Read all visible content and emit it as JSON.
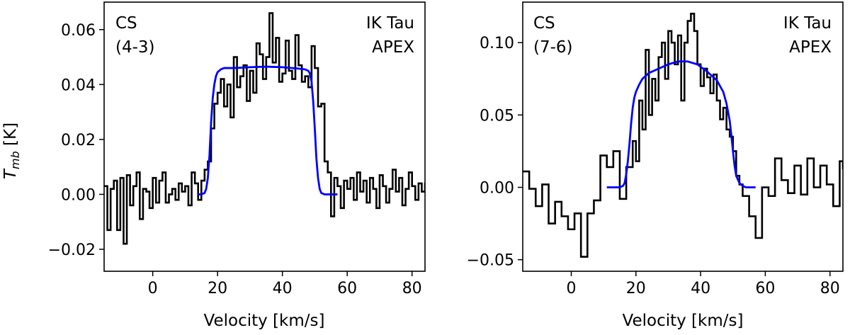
{
  "chart_data": [
    {
      "type": "line",
      "annotation_left": [
        "CS",
        "(4-3)"
      ],
      "annotation_right": [
        "IK Tau",
        "APEX"
      ],
      "xlabel": "Velocity [km/s]",
      "ylabel_main": "T",
      "ylabel_sub": "mb",
      "ylabel_unit": " [K]",
      "xlim": [
        -15,
        84
      ],
      "ylim": [
        -0.028,
        0.07
      ],
      "xticks": [
        0,
        20,
        40,
        60,
        80
      ],
      "xtick_labels": [
        "0",
        "20",
        "40",
        "60",
        "80"
      ],
      "yticks": [
        -0.02,
        0.0,
        0.02,
        0.04,
        0.06
      ],
      "ytick_labels": [
        "−0.02",
        "0.00",
        "0.02",
        "0.04",
        "0.06"
      ],
      "series": [
        {
          "name": "observed spectrum",
          "style": "step",
          "color": "#000000",
          "x": [
            -15.0,
            -14.0,
            -13.0,
            -12.0,
            -11.0,
            -10.0,
            -9.0,
            -8.0,
            -7.0,
            -6.0,
            -5.0,
            -4.0,
            -3.0,
            -2.0,
            -1.0,
            0.0,
            1.0,
            2.0,
            3.0,
            4.0,
            5.0,
            6.0,
            7.0,
            8.0,
            9.0,
            10.0,
            11.0,
            12.0,
            13.0,
            14.0,
            15.0,
            16.0,
            17.0,
            18.0,
            19.0,
            20.0,
            21.0,
            22.0,
            23.0,
            24.0,
            25.0,
            26.0,
            27.0,
            28.0,
            29.0,
            30.0,
            31.0,
            32.0,
            33.0,
            34.0,
            35.0,
            36.0,
            37.0,
            38.0,
            39.0,
            40.0,
            41.0,
            42.0,
            43.0,
            44.0,
            45.0,
            46.0,
            47.0,
            48.0,
            49.0,
            50.0,
            51.0,
            52.0,
            53.0,
            54.0,
            55.0,
            56.0,
            57.0,
            58.0,
            59.0,
            60.0,
            61.0,
            62.0,
            63.0,
            64.0,
            65.0,
            66.0,
            67.0,
            68.0,
            69.0,
            70.0,
            71.0,
            72.0,
            73.0,
            74.0,
            75.0,
            76.0,
            77.0,
            78.0,
            79.0,
            80.0,
            81.0,
            82.0,
            83.0,
            84.0
          ],
          "y": [
            0.003,
            -0.013,
            0.002,
            0.005,
            -0.013,
            0.006,
            -0.018,
            0.007,
            -0.004,
            0.003,
            0.008,
            -0.009,
            0.002,
            0.001,
            -0.005,
            0.006,
            -0.003,
            0.005,
            0.008,
            -0.003,
            0.0,
            0.002,
            -0.002,
            0.004,
            0.001,
            0.003,
            -0.004,
            0.008,
            0.004,
            -0.002,
            0.005,
            0.009,
            0.012,
            0.024,
            0.033,
            0.037,
            0.042,
            0.032,
            0.04,
            0.028,
            0.05,
            0.039,
            0.043,
            0.047,
            0.034,
            0.045,
            0.037,
            0.055,
            0.051,
            0.042,
            0.05,
            0.066,
            0.048,
            0.057,
            0.041,
            0.044,
            0.056,
            0.045,
            0.042,
            0.058,
            0.047,
            0.041,
            0.043,
            0.039,
            0.054,
            0.046,
            0.032,
            0.033,
            0.012,
            0.008,
            -0.008,
            0.006,
            0.003,
            -0.005,
            0.005,
            0.002,
            0.006,
            -0.002,
            0.008,
            0.001,
            0.005,
            -0.003,
            0.006,
            0.002,
            -0.005,
            0.007,
            0.003,
            -0.003,
            0.002,
            0.009,
            0.001,
            0.006,
            -0.004,
            0.002,
            0.008,
            0.003,
            -0.002,
            0.004,
            0.001,
            0.004
          ]
        },
        {
          "name": "model fit",
          "style": "line",
          "color": "#0000ff",
          "x": [
            14.0,
            15.0,
            16.0,
            16.5,
            17.0,
            17.5,
            18.0,
            18.5,
            19.0,
            19.5,
            20.0,
            21.0,
            22.0,
            25.0,
            30.0,
            35.0,
            40.0,
            45.0,
            47.0,
            48.0,
            48.5,
            49.0,
            49.5,
            50.0,
            50.5,
            51.0,
            51.5,
            52.0,
            53.0,
            54.0,
            57.0
          ],
          "y": [
            0.0,
            0.0,
            0.0005,
            0.002,
            0.006,
            0.014,
            0.026,
            0.035,
            0.04,
            0.043,
            0.0445,
            0.0455,
            0.046,
            0.046,
            0.0463,
            0.0465,
            0.0463,
            0.0458,
            0.0455,
            0.045,
            0.044,
            0.041,
            0.034,
            0.024,
            0.013,
            0.006,
            0.002,
            0.0005,
            0.0,
            0.0,
            0.0
          ]
        }
      ]
    },
    {
      "type": "line",
      "annotation_left": [
        "CS",
        "(7-6)"
      ],
      "annotation_right": [
        "IK Tau",
        "APEX"
      ],
      "xlabel": "Velocity [km/s]",
      "xlim": [
        -15,
        84
      ],
      "ylim": [
        -0.058,
        0.128
      ],
      "xticks": [
        0,
        20,
        40,
        60,
        80
      ],
      "xtick_labels": [
        "0",
        "20",
        "40",
        "60",
        "80"
      ],
      "yticks": [
        -0.05,
        0.0,
        0.05,
        0.1
      ],
      "ytick_labels": [
        "−0.05",
        "0.00",
        "0.05",
        "0.10"
      ],
      "series": [
        {
          "name": "observed spectrum",
          "style": "step",
          "color": "#000000",
          "x": [
            -15.0,
            -13.0,
            -11.0,
            -9.0,
            -7.0,
            -5.0,
            -3.0,
            -1.0,
            1.0,
            3.0,
            5.0,
            7.0,
            9.0,
            11.0,
            13.0,
            15.0,
            17.0,
            19.0,
            20.0,
            21.0,
            22.0,
            23.0,
            24.0,
            25.0,
            26.0,
            27.0,
            28.0,
            29.0,
            30.0,
            31.0,
            32.0,
            33.0,
            34.0,
            35.0,
            36.0,
            37.0,
            38.0,
            39.0,
            40.0,
            41.0,
            42.0,
            43.0,
            44.0,
            45.0,
            46.0,
            47.0,
            48.0,
            49.0,
            50.0,
            51.0,
            52.0,
            53.0,
            55.0,
            57.0,
            59.0,
            61.0,
            63.0,
            65.0,
            67.0,
            69.0,
            71.0,
            73.0,
            75.0,
            77.0,
            79.0,
            81.0,
            83.0,
            84.0
          ],
          "y": [
            0.011,
            -0.001,
            -0.013,
            0.002,
            -0.025,
            -0.01,
            -0.02,
            -0.029,
            -0.018,
            -0.048,
            -0.018,
            -0.009,
            0.022,
            0.014,
            0.025,
            -0.008,
            0.014,
            0.032,
            0.018,
            0.06,
            0.04,
            0.095,
            0.05,
            0.075,
            0.06,
            0.09,
            0.1,
            0.075,
            0.108,
            0.1,
            0.085,
            0.105,
            0.06,
            0.1,
            0.115,
            0.12,
            0.108,
            0.085,
            0.07,
            0.082,
            0.076,
            0.065,
            0.078,
            0.06,
            0.047,
            0.055,
            0.04,
            0.035,
            0.025,
            0.008,
            0.002,
            -0.006,
            -0.02,
            -0.035,
            0.0,
            -0.006,
            0.02,
            0.005,
            -0.004,
            0.015,
            -0.005,
            0.02,
            0.0,
            0.015,
            0.002,
            -0.013,
            0.018,
            0.013
          ]
        },
        {
          "name": "model fit",
          "style": "line",
          "color": "#0000ff",
          "x": [
            11.0,
            13.0,
            15.0,
            16.0,
            16.5,
            17.0,
            17.5,
            18.0,
            18.5,
            19.0,
            19.5,
            20.0,
            21.0,
            22.0,
            24.0,
            27.0,
            30.0,
            33.0,
            36.0,
            39.0,
            42.0,
            45.0,
            47.0,
            48.0,
            49.0,
            49.5,
            50.0,
            50.5,
            51.0,
            52.0,
            53.0,
            54.0,
            57.0
          ],
          "y": [
            0.0,
            0.0,
            0.0,
            0.001,
            0.003,
            0.009,
            0.018,
            0.03,
            0.044,
            0.055,
            0.062,
            0.066,
            0.071,
            0.075,
            0.079,
            0.082,
            0.085,
            0.087,
            0.087,
            0.085,
            0.08,
            0.074,
            0.066,
            0.058,
            0.046,
            0.036,
            0.025,
            0.015,
            0.008,
            0.003,
            0.001,
            0.0,
            0.0
          ]
        }
      ]
    }
  ]
}
